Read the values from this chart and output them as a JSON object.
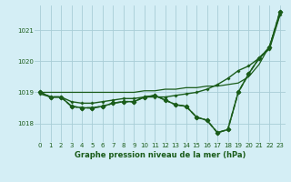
{
  "title": "Graphe pression niveau de la mer (hPa)",
  "background_color": "#d4eef5",
  "grid_color": "#a8cdd6",
  "text_color": "#1a5c1a",
  "line_color": "#1a5c1a",
  "xlim": [
    -0.5,
    23.5
  ],
  "ylim": [
    1017.4,
    1021.8
  ],
  "yticks": [
    1018,
    1019,
    1020,
    1021
  ],
  "xticks": [
    0,
    1,
    2,
    3,
    4,
    5,
    6,
    7,
    8,
    9,
    10,
    11,
    12,
    13,
    14,
    15,
    16,
    17,
    18,
    19,
    20,
    21,
    22,
    23
  ],
  "series": [
    {
      "x": [
        0,
        1,
        2,
        3,
        4,
        5,
        6,
        7,
        8,
        9,
        10,
        11,
        12,
        13,
        14,
        15,
        16,
        17,
        18,
        19,
        20,
        21,
        22,
        23
      ],
      "y": [
        1019.0,
        1019.0,
        1019.0,
        1019.0,
        1019.0,
        1019.0,
        1019.0,
        1019.0,
        1019.0,
        1019.0,
        1019.05,
        1019.05,
        1019.1,
        1019.1,
        1019.15,
        1019.15,
        1019.2,
        1019.2,
        1019.25,
        1019.3,
        1019.5,
        1019.9,
        1020.5,
        1021.5
      ],
      "marker": null,
      "markersize": 0,
      "linewidth": 0.9,
      "linestyle": "-"
    },
    {
      "x": [
        0,
        1,
        2,
        3,
        4,
        5,
        6,
        7,
        8,
        9,
        10,
        11,
        12,
        13,
        14,
        15,
        16,
        17,
        18,
        19,
        20,
        21,
        22,
        23
      ],
      "y": [
        1018.95,
        1018.85,
        1018.85,
        1018.7,
        1018.65,
        1018.65,
        1018.7,
        1018.75,
        1018.8,
        1018.8,
        1018.85,
        1018.85,
        1018.85,
        1018.9,
        1018.95,
        1019.0,
        1019.1,
        1019.25,
        1019.45,
        1019.7,
        1019.85,
        1020.1,
        1020.4,
        1021.5
      ],
      "marker": "P",
      "markersize": 2.0,
      "linewidth": 1.0,
      "linestyle": "-"
    },
    {
      "x": [
        0,
        1,
        2,
        3,
        4,
        5,
        6,
        7,
        8,
        9,
        10,
        11,
        12,
        13,
        14,
        15,
        16,
        17,
        18,
        19,
        20,
        21,
        22,
        23
      ],
      "y": [
        1019.0,
        1018.85,
        1018.85,
        1018.55,
        1018.5,
        1018.5,
        1018.55,
        1018.65,
        1018.7,
        1018.7,
        1018.85,
        1018.9,
        1018.75,
        1018.6,
        1018.55,
        1018.2,
        1018.1,
        1017.7,
        1017.8,
        1019.0,
        1019.6,
        1020.1,
        1020.45,
        1021.6
      ],
      "marker": "D",
      "markersize": 2.5,
      "linewidth": 1.1,
      "linestyle": "-"
    },
    {
      "x": [
        0,
        1,
        2,
        3,
        4,
        5,
        6,
        7,
        8,
        9,
        10,
        11,
        12,
        13,
        14,
        15,
        16,
        17,
        18,
        19,
        20,
        21,
        22,
        23
      ],
      "y": [
        1019.0,
        1018.85,
        1018.85,
        1018.55,
        1018.5,
        1018.5,
        1018.55,
        1018.65,
        1018.7,
        1018.7,
        1018.85,
        1018.9,
        1018.75,
        1018.6,
        1018.55,
        1018.2,
        1018.1,
        1017.7,
        1017.8,
        1019.0,
        1019.6,
        1020.1,
        1020.45,
        1021.6
      ],
      "marker": "D",
      "markersize": 2.5,
      "linewidth": 1.1,
      "linestyle": "--"
    }
  ]
}
